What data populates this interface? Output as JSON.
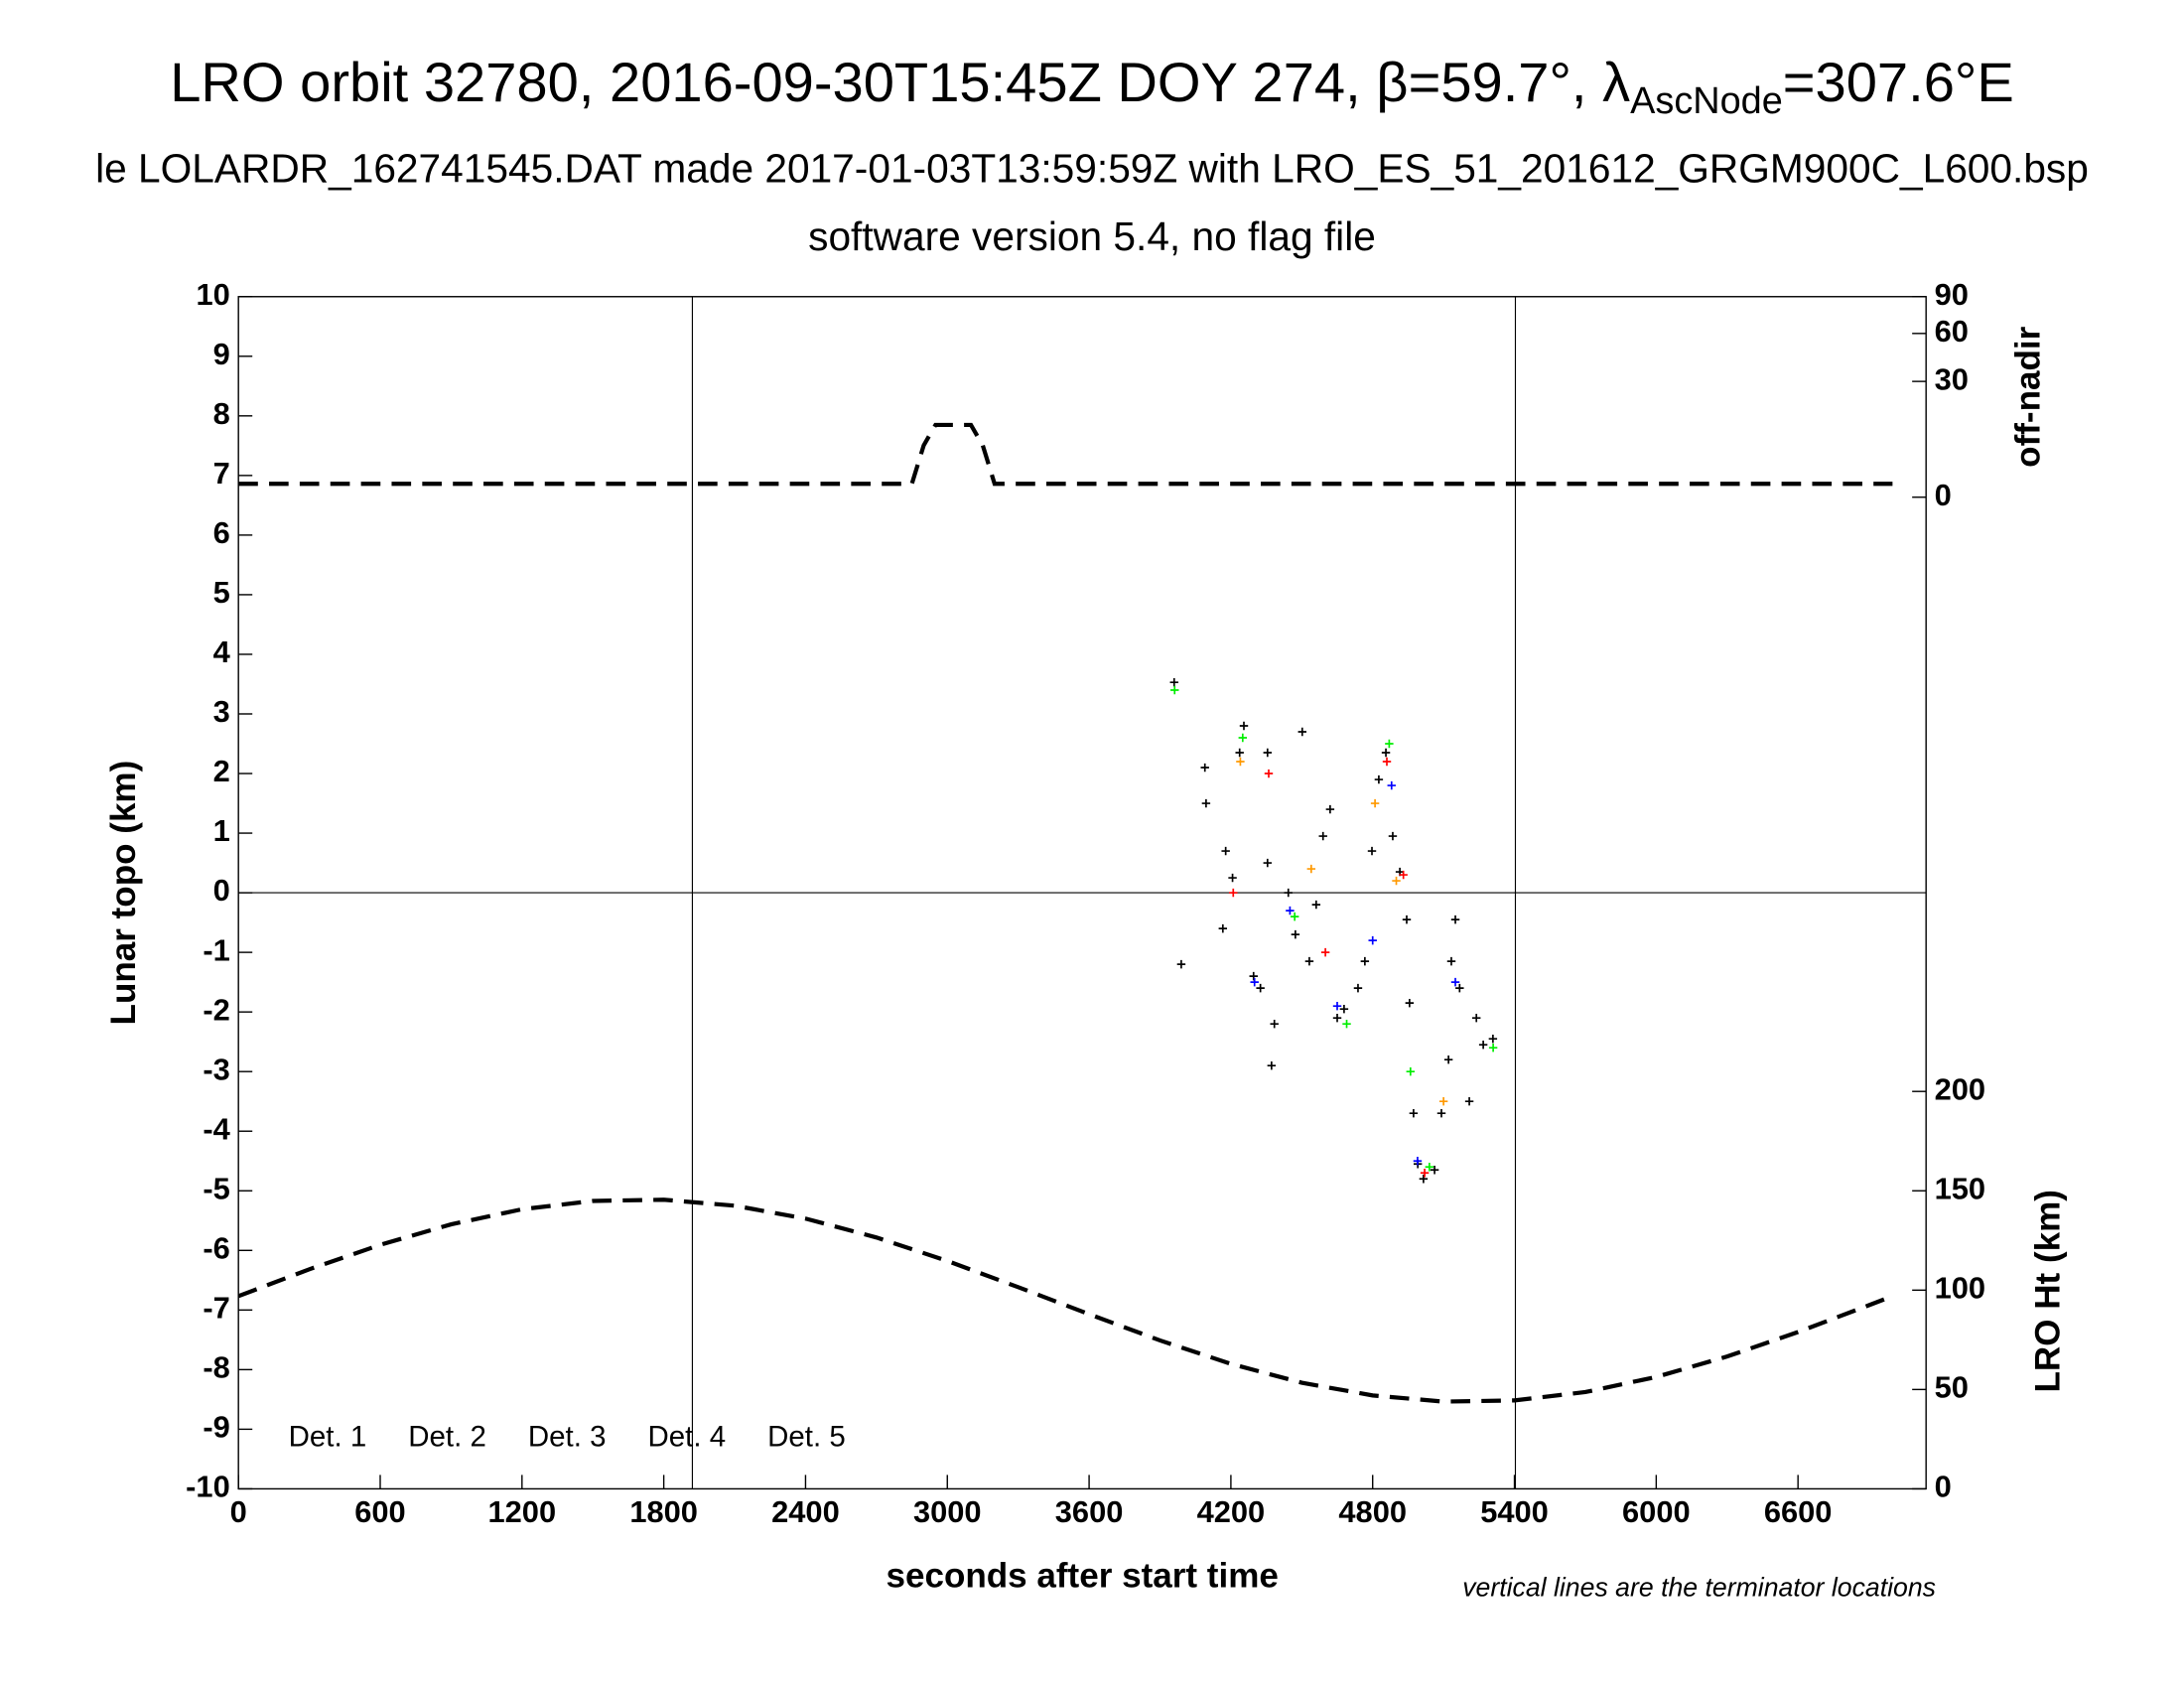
{
  "chart_data": {
    "type": "scatter",
    "title": "LRO orbit 32780, 2016-09-30T15:45Z DOY 274, β=59.7°, λ",
    "title_subscript": "AscNode",
    "title_end": "=307.6°E",
    "subtitle": "le LOLARDR_162741545.DAT made 2017-01-03T13:59:59Z with LRO_ES_51_201612_GRGM900C_L600.bsp",
    "subtitle2": "software version 5.4, no flag file",
    "xlabel": "seconds after start time",
    "ylabel": "Lunar topo (km)",
    "y2label": "off-nadir",
    "y3label": "LRO Ht (km)",
    "note": "vertical lines are the terminator locations",
    "xlim": [
      0,
      7142
    ],
    "xticks": [
      0,
      600,
      1200,
      1800,
      2400,
      3000,
      3600,
      4200,
      4800,
      5400,
      6000,
      6600
    ],
    "ylim": [
      -10,
      10
    ],
    "yticks": [
      -10,
      -9,
      -8,
      -7,
      -6,
      -5,
      -4,
      -3,
      -2,
      -1,
      0,
      1,
      2,
      3,
      4,
      5,
      6,
      7,
      8,
      9,
      10
    ],
    "y2lim": [
      0,
      90
    ],
    "y2ticks": [
      0,
      30,
      60,
      90
    ],
    "y2scale": "sqrt",
    "y3lim": [
      0,
      600
    ],
    "y3ticks": [
      0,
      50,
      100,
      150,
      200
    ],
    "terminators": [
      1921,
      5404
    ],
    "zero_line": true,
    "series": [
      {
        "name": "Det. 1",
        "type": "scatter",
        "color": "#000000",
        "x": [
          3960,
          3990,
          4090,
          4095,
          4178,
          4207,
          4166,
          4237,
          4255,
          4296,
          4325,
          4355,
          4355,
          4372,
          4384,
          4443,
          4473,
          4502,
          4532,
          4561,
          4590,
          4620,
          4650,
          4679,
          4738,
          4767,
          4797,
          4826,
          4856,
          4885,
          4915,
          4944,
          4956,
          4973,
          4991,
          5015,
          5062,
          5091,
          5121,
          5133,
          5150,
          5168,
          5209,
          5239,
          5268,
          5309
        ],
        "values": [
          3.53,
          -1.2,
          2.1,
          1.5,
          0.7,
          0.25,
          -0.6,
          2.35,
          2.8,
          -1.4,
          -1.6,
          2.35,
          0.5,
          -2.9,
          -2.2,
          0.0,
          -0.7,
          2.7,
          -1.15,
          -0.2,
          0.95,
          1.4,
          -2.1,
          -1.95,
          -1.6,
          -1.15,
          0.7,
          1.9,
          2.35,
          0.95,
          0.35,
          -0.45,
          -1.85,
          -3.7,
          -4.55,
          -4.8,
          -4.65,
          -3.7,
          -2.8,
          -1.15,
          -0.45,
          -1.6,
          -3.5,
          -2.1,
          -2.55,
          -2.45
        ]
      },
      {
        "name": "Det. 2",
        "type": "scatter",
        "color": "#0000ff",
        "x": [
          4300,
          4450,
          4650,
          4800,
          4880,
          4990,
          5150
        ],
        "values": [
          -1.5,
          -0.3,
          -1.9,
          -0.8,
          1.8,
          -4.5,
          -1.5
        ]
      },
      {
        "name": "Det. 3",
        "type": "scatter",
        "color": "#00ee00",
        "x": [
          3962,
          4250,
          4470,
          4690,
          4870,
          4960,
          5040,
          5310
        ],
        "values": [
          3.4,
          2.6,
          -0.4,
          -2.2,
          2.5,
          -3.0,
          -4.6,
          -2.6
        ]
      },
      {
        "name": "Det. 4",
        "type": "scatter",
        "color": "#ff9900",
        "x": [
          4240,
          4540,
          4810,
          4900,
          5100
        ],
        "values": [
          2.2,
          0.4,
          1.5,
          0.2,
          -3.5
        ]
      },
      {
        "name": "Det. 5",
        "type": "scatter",
        "color": "#ff0000",
        "x": [
          4210,
          4360,
          4600,
          4860,
          4930,
          5020
        ],
        "values": [
          0.0,
          2.0,
          -1.0,
          2.2,
          0.3,
          -4.7
        ]
      },
      {
        "type": "line",
        "axis": "y2",
        "color": "#000000",
        "x": [
          0,
          2850,
          2900,
          2950,
          3100,
          3150,
          3200,
          7000
        ],
        "values": [
          0.4,
          0.4,
          6,
          11.7,
          11.7,
          6,
          0.4,
          0.4
        ]
      },
      {
        "type": "line",
        "axis": "y3",
        "color": "#000000",
        "x": [
          0,
          300,
          600,
          900,
          1200,
          1500,
          1800,
          2100,
          2400,
          2700,
          3000,
          3300,
          3600,
          3900,
          4200,
          4500,
          4800,
          5100,
          5400,
          5700,
          6000,
          6300,
          6600,
          6900,
          7000
        ],
        "values": [
          97.0,
          110.5,
          122.8,
          133.1,
          140.7,
          144.9,
          145.5,
          142.5,
          136.0,
          126.5,
          114.7,
          101.5,
          87.9,
          74.7,
          62.9,
          53.4,
          47.0,
          43.9,
          44.5,
          48.7,
          56.3,
          66.6,
          78.9,
          92.4,
          97.0
        ]
      }
    ]
  }
}
